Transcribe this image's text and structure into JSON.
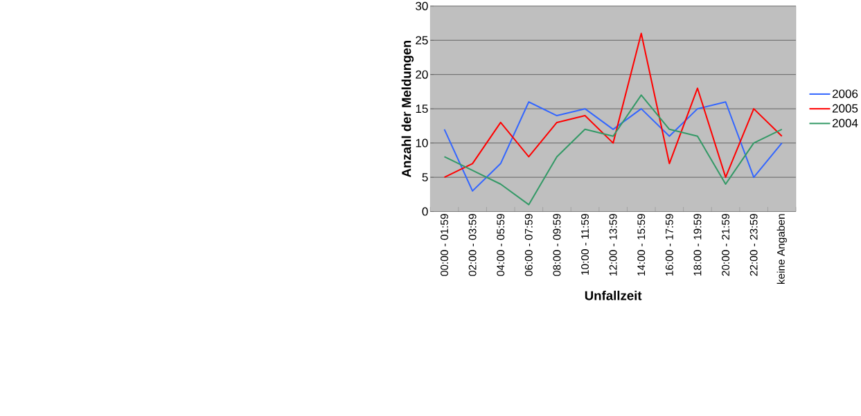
{
  "chart_data": {
    "type": "line",
    "xlabel": "Unfallzeit",
    "ylabel": "Anzahl der Meldungen",
    "categories": [
      "00:00 - 01:59",
      "02:00 - 03:59",
      "04:00 - 05:59",
      "06:00 - 07:59",
      "08:00 - 09:59",
      "10:00 - 11:59",
      "12:00 - 13:59",
      "14:00 - 15:59",
      "16:00 - 17:59",
      "18:00 - 19:59",
      "20:00 - 21:59",
      "22:00 - 23:59",
      "keine Angaben"
    ],
    "series": [
      {
        "name": "2006",
        "color": "#3366ff",
        "values": [
          12,
          3,
          7,
          16,
          14,
          15,
          12,
          15,
          11,
          15,
          16,
          5,
          10
        ]
      },
      {
        "name": "2005",
        "color": "#ff0000",
        "values": [
          5,
          7,
          13,
          8,
          13,
          14,
          10,
          26,
          7,
          18,
          5,
          15,
          11
        ]
      },
      {
        "name": "2004",
        "color": "#339966",
        "values": [
          8,
          6,
          4,
          1,
          8,
          12,
          11,
          17,
          12,
          11,
          4,
          10,
          12
        ]
      }
    ],
    "ylim": [
      0,
      30
    ],
    "yticks": [
      0,
      5,
      10,
      15,
      20,
      25,
      30
    ],
    "grid": "y",
    "legend": "right"
  }
}
